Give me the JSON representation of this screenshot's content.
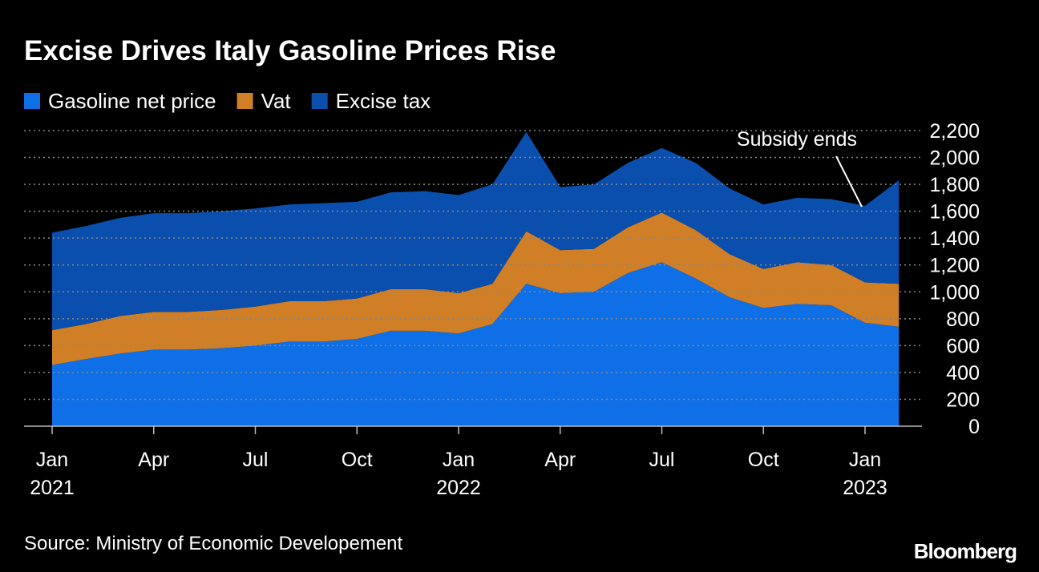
{
  "chart_data": {
    "type": "stacked_area",
    "title": "Excise Drives Italy Gasoline Prices Rise",
    "source": "Source: Ministry of Economic Developement",
    "brand": "Bloomberg",
    "x": [
      "2021-01",
      "2021-02",
      "2021-03",
      "2021-04",
      "2021-05",
      "2021-06",
      "2021-07",
      "2021-08",
      "2021-09",
      "2021-10",
      "2021-11",
      "2021-12",
      "2022-01",
      "2022-02",
      "2022-03",
      "2022-04",
      "2022-05",
      "2022-06",
      "2022-07",
      "2022-08",
      "2022-09",
      "2022-10",
      "2022-11",
      "2022-12",
      "2023-01",
      "2023-02"
    ],
    "series": [
      {
        "name": "Gasoline net price",
        "color": "#0f6fe6",
        "values": [
          455,
          500,
          540,
          570,
          570,
          580,
          600,
          630,
          630,
          650,
          710,
          710,
          690,
          760,
          1060,
          990,
          1000,
          1140,
          1220,
          1100,
          960,
          880,
          910,
          900,
          770,
          740
        ]
      },
      {
        "name": "Vat",
        "color": "#d07f26",
        "values": [
          260,
          260,
          280,
          280,
          280,
          285,
          290,
          300,
          300,
          300,
          310,
          310,
          300,
          300,
          390,
          320,
          320,
          340,
          370,
          360,
          320,
          290,
          310,
          300,
          300,
          320
        ]
      },
      {
        "name": "Excise tax",
        "color": "#0a4fae",
        "values": [
          725,
          730,
          730,
          735,
          735,
          735,
          730,
          720,
          730,
          720,
          720,
          730,
          730,
          740,
          740,
          470,
          480,
          480,
          480,
          500,
          490,
          480,
          480,
          490,
          570,
          770
        ]
      }
    ],
    "ylim": [
      0,
      2200
    ],
    "yticks": [
      0,
      200,
      400,
      600,
      800,
      {
        "value": 1000,
        "label": "1,000"
      },
      {
        "value": 1200,
        "label": "1,200"
      },
      {
        "value": 1400,
        "label": "1,400"
      },
      {
        "value": 1600,
        "label": "1,600"
      },
      {
        "value": 1800,
        "label": "1,800"
      },
      {
        "value": 2000,
        "label": "2,000"
      },
      {
        "value": 2200,
        "label": "2,200"
      }
    ],
    "xticks": [
      {
        "value": "2021-01",
        "label": "Jan 2021"
      },
      {
        "value": "2021-04",
        "label": "Apr"
      },
      {
        "value": "2021-07",
        "label": "Jul"
      },
      {
        "value": "2021-10",
        "label": "Oct"
      },
      {
        "value": "2022-01",
        "label": "Jan 2022"
      },
      {
        "value": "2022-04",
        "label": "Apr"
      },
      {
        "value": "2022-07",
        "label": "Jul"
      },
      {
        "value": "2022-10",
        "label": "Oct"
      },
      {
        "value": "2023-01",
        "label": "Jan 2023"
      }
    ],
    "grid": true,
    "annotations": [
      {
        "text": "Subsidy ends",
        "x": "2023-01"
      }
    ]
  }
}
